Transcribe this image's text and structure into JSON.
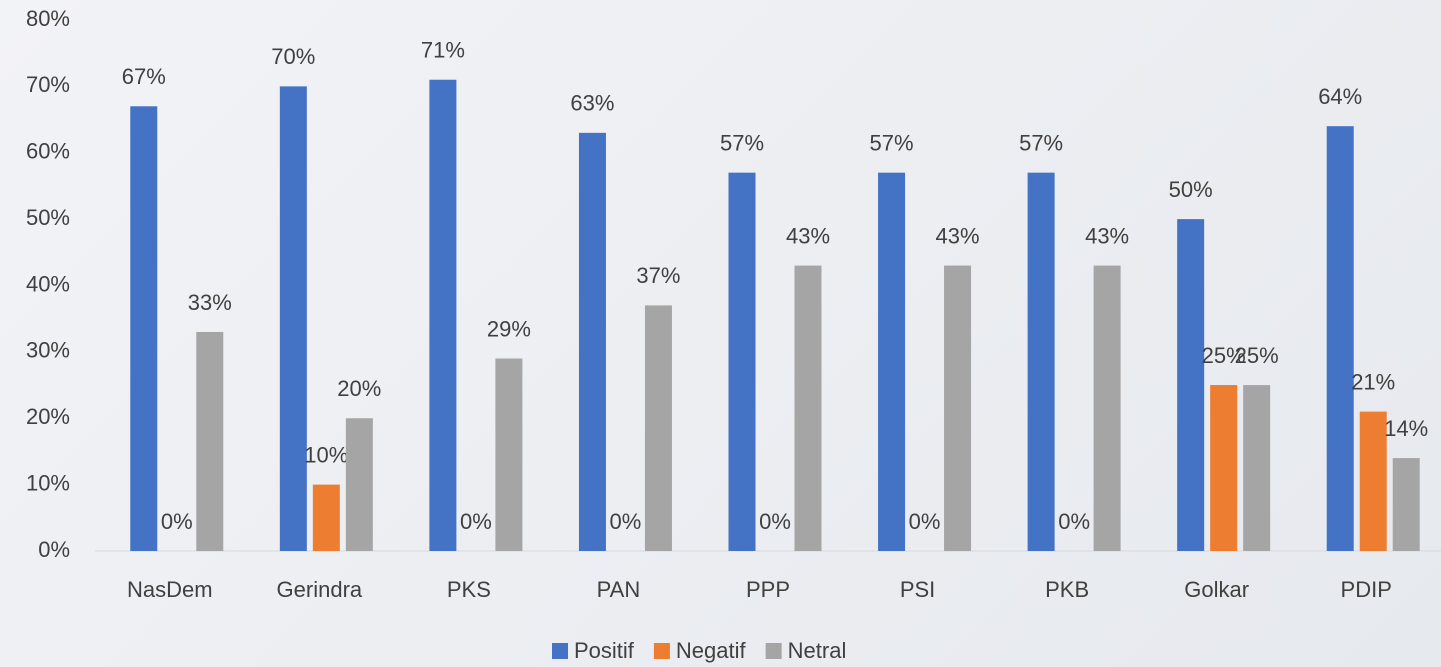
{
  "chart_data": {
    "type": "bar",
    "categories": [
      "NasDem",
      "Gerindra",
      "PKS",
      "PAN",
      "PPP",
      "PSI",
      "PKB",
      "Golkar",
      "PDIP"
    ],
    "series": [
      {
        "name": "Positif",
        "color": "#4472c4",
        "values": [
          67,
          70,
          71,
          63,
          57,
          57,
          57,
          50,
          64
        ],
        "value_labels": [
          "67%",
          "70%",
          "71%",
          "63%",
          "57%",
          "57%",
          "57%",
          "50%",
          "64%"
        ]
      },
      {
        "name": "Negatif",
        "color": "#ed7d31",
        "values": [
          0,
          10,
          0,
          0,
          0,
          0,
          0,
          25,
          21
        ],
        "value_labels": [
          "0%",
          "10%",
          "0%",
          "0%",
          "0%",
          "0%",
          "0%",
          "25%",
          "21%"
        ]
      },
      {
        "name": "Netral",
        "color": "#a5a5a5",
        "values": [
          33,
          20,
          29,
          37,
          43,
          43,
          43,
          25,
          14
        ],
        "value_labels": [
          "33%",
          "20%",
          "29%",
          "37%",
          "43%",
          "43%",
          "43%",
          "25%",
          "14%"
        ]
      }
    ],
    "ylim": [
      0,
      80
    ],
    "yticks": [
      {
        "value": 0,
        "label": "0%"
      },
      {
        "value": 10,
        "label": "10%"
      },
      {
        "value": 20,
        "label": "20%"
      },
      {
        "value": 30,
        "label": "30%"
      },
      {
        "value": 40,
        "label": "40%"
      },
      {
        "value": 50,
        "label": "50%"
      },
      {
        "value": 60,
        "label": "60%"
      },
      {
        "value": 70,
        "label": "70%"
      },
      {
        "value": 80,
        "label": "80%"
      }
    ],
    "legend": "bottom"
  }
}
